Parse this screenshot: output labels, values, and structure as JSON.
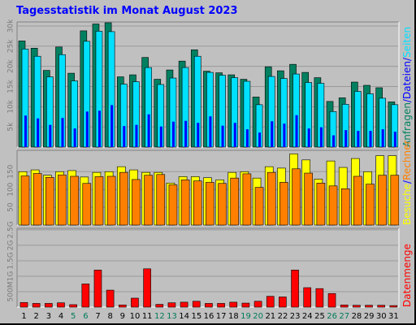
{
  "title": "Tagesstatistik im Monat August 2023",
  "chart_data": [
    {
      "type": "bar",
      "panel": "top",
      "categories": [
        "1",
        "2",
        "3",
        "4",
        "5",
        "6",
        "7",
        "8",
        "9",
        "10",
        "11",
        "12",
        "13",
        "14",
        "15",
        "16",
        "17",
        "18",
        "19",
        "20",
        "21",
        "22",
        "23",
        "24",
        "25",
        "26",
        "27",
        "28",
        "29",
        "30",
        "31"
      ],
      "weekend_days": [
        "5",
        "6",
        "12",
        "13",
        "19",
        "20",
        "26",
        "27"
      ],
      "ylim": [
        0,
        31000
      ],
      "yticks": [
        "5k",
        "10k",
        "15k",
        "20k",
        "25k",
        "30k"
      ],
      "ytick_values": [
        5000,
        10000,
        15000,
        20000,
        25000,
        30000
      ],
      "axis_labels": [
        {
          "text": "Anfragen",
          "color": "#008060"
        },
        {
          "text": "Dateien",
          "color": "#0000ff"
        },
        {
          "text": "Seiten",
          "color": "#00e0ff"
        }
      ],
      "series": [
        {
          "name": "Anfragen",
          "color": "#008060",
          "values": [
            26300,
            24500,
            19000,
            24800,
            18300,
            28800,
            30500,
            30800,
            17400,
            17900,
            22200,
            16800,
            19100,
            21300,
            24100,
            18800,
            18400,
            17900,
            16800,
            12400,
            19900,
            18900,
            20500,
            18500,
            17200,
            11300,
            12200,
            16100,
            15300,
            14700,
            11200
          ]
        },
        {
          "name": "Dateien",
          "color": "#00e0ff",
          "values": [
            24300,
            22500,
            17400,
            22900,
            16400,
            26200,
            28700,
            28600,
            15600,
            16200,
            19700,
            15500,
            17100,
            19700,
            22500,
            18500,
            17800,
            17200,
            16300,
            10500,
            17500,
            17000,
            18100,
            16000,
            15800,
            8800,
            10600,
            13800,
            13200,
            12100,
            10500
          ]
        },
        {
          "name": "Seiten",
          "color": "#0000ff",
          "values": [
            7800,
            7100,
            5500,
            7200,
            4600,
            8800,
            9000,
            10400,
            5200,
            5500,
            8100,
            5100,
            6300,
            6500,
            6000,
            7600,
            5300,
            6000,
            4400,
            3600,
            6400,
            5800,
            7900,
            4600,
            4900,
            2900,
            4200,
            4000,
            4000,
            4400,
            3800
          ]
        }
      ]
    },
    {
      "type": "bar",
      "panel": "middle",
      "categories": [
        "1",
        "2",
        "3",
        "4",
        "5",
        "6",
        "7",
        "8",
        "9",
        "10",
        "11",
        "12",
        "13",
        "14",
        "15",
        "16",
        "17",
        "18",
        "19",
        "20",
        "21",
        "22",
        "23",
        "24",
        "25",
        "26",
        "27",
        "28",
        "29",
        "30",
        "31"
      ],
      "ylim": [
        0,
        210
      ],
      "yticks": [
        "50",
        "100",
        "150"
      ],
      "ytick_values": [
        50,
        100,
        150
      ],
      "axis_labels": [
        {
          "text": "Besuche",
          "color": "#ffff00"
        },
        {
          "text": "Rechner",
          "color": "#ff8000"
        }
      ],
      "series": [
        {
          "name": "Besuche",
          "color": "#ffff00",
          "values": [
            150,
            155,
            140,
            150,
            153,
            135,
            148,
            150,
            164,
            155,
            148,
            148,
            118,
            136,
            136,
            133,
            127,
            148,
            150,
            132,
            164,
            160,
            200,
            183,
            129,
            180,
            162,
            187,
            150,
            195,
            195
          ]
        },
        {
          "name": "Rechner",
          "color": "#ff8000",
          "values": [
            138,
            145,
            134,
            141,
            137,
            117,
            136,
            137,
            148,
            128,
            140,
            142,
            113,
            127,
            124,
            120,
            117,
            132,
            144,
            106,
            148,
            120,
            158,
            146,
            118,
            110,
            102,
            137,
            115,
            140,
            140
          ]
        }
      ]
    },
    {
      "type": "bar",
      "panel": "bottom",
      "categories": [
        "1",
        "2",
        "3",
        "4",
        "5",
        "6",
        "7",
        "8",
        "9",
        "10",
        "11",
        "12",
        "13",
        "14",
        "15",
        "16",
        "17",
        "18",
        "19",
        "20",
        "21",
        "22",
        "23",
        "24",
        "25",
        "26",
        "27",
        "28",
        "29",
        "30",
        "31"
      ],
      "ylim": [
        0,
        2.55
      ],
      "yticks": [
        "500M",
        "1G",
        "1.5G",
        "2G",
        "2.5G"
      ],
      "ytick_values": [
        0.5,
        1.0,
        1.5,
        2.0,
        2.5
      ],
      "axis_labels": [
        {
          "text": "Datenmenge",
          "color": "#ff0000"
        }
      ],
      "series": [
        {
          "name": "Datenmenge",
          "color": "#ff0000",
          "values": [
            0.15,
            0.12,
            0.12,
            0.14,
            0.08,
            0.75,
            1.2,
            0.55,
            0.07,
            0.29,
            1.24,
            0.09,
            0.14,
            0.16,
            0.19,
            0.12,
            0.12,
            0.16,
            0.13,
            0.19,
            0.35,
            0.33,
            1.2,
            0.63,
            0.6,
            0.44,
            0.07,
            0.06,
            0.06,
            0.06,
            0.05
          ]
        }
      ]
    }
  ]
}
